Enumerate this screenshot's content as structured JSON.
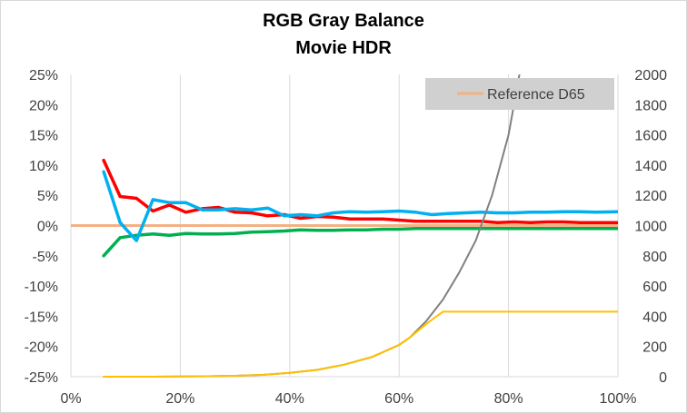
{
  "chart_data": {
    "type": "line",
    "title": "RGB Gray Balance",
    "subtitle": "Movie HDR",
    "xlabel": "",
    "ylabel": "",
    "xlim": [
      0,
      100
    ],
    "ylim_left": [
      -25,
      25
    ],
    "ylim_right": [
      0,
      2000
    ],
    "x_ticks": [
      "0%",
      "20%",
      "40%",
      "60%",
      "80%",
      "100%"
    ],
    "y_left_ticks": [
      "25%",
      "20%",
      "15%",
      "10%",
      "5%",
      "0%",
      "-5%",
      "-10%",
      "-15%",
      "-20%",
      "-25%"
    ],
    "y_right_ticks": [
      "2000",
      "1800",
      "1600",
      "1400",
      "1200",
      "1000",
      "800",
      "600",
      "400",
      "200",
      "0"
    ],
    "grid": "vertical",
    "legend": {
      "position": "top-right",
      "entries": [
        "Reference D65"
      ]
    },
    "series": [
      {
        "name": "Reference D65",
        "axis": "left",
        "color": "#f4b183",
        "x": [
          0,
          100
        ],
        "y": [
          0,
          0
        ]
      },
      {
        "axis": "left",
        "color": "#ff0000",
        "x": [
          6,
          9,
          12,
          15,
          18,
          21,
          24,
          27,
          30,
          33,
          36,
          39,
          42,
          45,
          48,
          51,
          54,
          57,
          60,
          63,
          66,
          69,
          72,
          75,
          78,
          81,
          84,
          87,
          90,
          93,
          96,
          100
        ],
        "y": [
          10.8,
          4.8,
          4.5,
          2.4,
          3.4,
          2.2,
          2.8,
          3.0,
          2.2,
          2.1,
          1.6,
          1.8,
          1.2,
          1.5,
          1.4,
          1.1,
          1.1,
          1.1,
          0.9,
          0.7,
          0.7,
          0.7,
          0.7,
          0.7,
          0.5,
          0.6,
          0.5,
          0.6,
          0.6,
          0.5,
          0.5,
          0.5
        ]
      },
      {
        "axis": "left",
        "color": "#00b050",
        "x": [
          6,
          9,
          12,
          15,
          18,
          21,
          24,
          27,
          30,
          33,
          36,
          39,
          42,
          45,
          48,
          51,
          54,
          57,
          60,
          63,
          66,
          69,
          72,
          75,
          78,
          81,
          84,
          87,
          90,
          93,
          96,
          100
        ],
        "y": [
          -5.0,
          -2.0,
          -1.6,
          -1.4,
          -1.6,
          -1.3,
          -1.4,
          -1.4,
          -1.3,
          -1.1,
          -1.0,
          -0.9,
          -0.7,
          -0.8,
          -0.8,
          -0.7,
          -0.7,
          -0.6,
          -0.6,
          -0.5,
          -0.5,
          -0.5,
          -0.5,
          -0.5,
          -0.5,
          -0.5,
          -0.5,
          -0.5,
          -0.5,
          -0.5,
          -0.5,
          -0.5
        ]
      },
      {
        "axis": "left",
        "color": "#00b0f0",
        "x": [
          6,
          9,
          12,
          15,
          18,
          21,
          24,
          27,
          30,
          33,
          36,
          39,
          42,
          45,
          48,
          51,
          54,
          57,
          60,
          63,
          66,
          69,
          72,
          75,
          78,
          81,
          84,
          87,
          90,
          93,
          96,
          100
        ],
        "y": [
          8.9,
          0.5,
          -2.5,
          4.3,
          3.8,
          3.8,
          2.6,
          2.6,
          2.8,
          2.6,
          2.9,
          1.6,
          1.8,
          1.6,
          2.1,
          2.3,
          2.2,
          2.3,
          2.4,
          2.2,
          1.8,
          2.0,
          2.1,
          2.2,
          2.1,
          2.1,
          2.2,
          2.2,
          2.3,
          2.3,
          2.2,
          2.3
        ]
      },
      {
        "axis": "right",
        "color": "#808080",
        "x": [
          6,
          10,
          15,
          20,
          25,
          30,
          35,
          40,
          45,
          50,
          55,
          60,
          62,
          65,
          68,
          71,
          74,
          77,
          80,
          82
        ],
        "y": [
          0,
          0,
          0,
          1,
          3,
          6,
          12,
          25,
          45,
          80,
          130,
          210,
          260,
          370,
          510,
          690,
          900,
          1200,
          1600,
          2000
        ]
      },
      {
        "axis": "right",
        "color": "#ffc000",
        "x": [
          6,
          10,
          15,
          20,
          25,
          30,
          35,
          40,
          45,
          50,
          55,
          60,
          62,
          65,
          68,
          72,
          80,
          90,
          100
        ],
        "y": [
          0,
          0,
          0,
          1,
          3,
          6,
          12,
          25,
          45,
          80,
          130,
          210,
          260,
          350,
          430,
          430,
          430,
          430,
          430
        ]
      }
    ]
  }
}
